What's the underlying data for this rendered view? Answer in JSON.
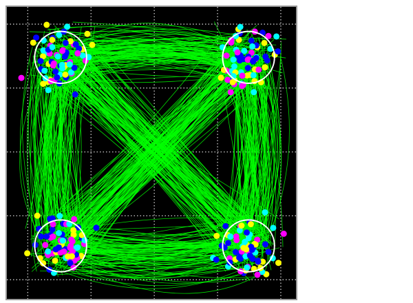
{
  "chart_data": {
    "type": "line",
    "title": "",
    "xlabel": "",
    "ylabel": "",
    "xlim": [
      -0.33,
      4.24
    ],
    "ylim": [
      -0.3,
      4.27
    ],
    "grid": true,
    "grid_ticks": [
      0,
      1,
      2,
      3,
      4
    ],
    "background": "#000000",
    "trajectory_color": "#00ff00",
    "target_ring_color": "#ffffff",
    "targets": [
      {
        "x": 0.52,
        "y": 3.48,
        "r": 0.41
      },
      {
        "x": 3.49,
        "y": 3.48,
        "r": 0.41
      },
      {
        "x": 0.52,
        "y": 0.53,
        "r": 0.41
      },
      {
        "x": 3.49,
        "y": 0.53,
        "r": 0.41
      }
    ],
    "endpoint_colors": [
      "#ff00ff",
      "#0000ff",
      "#ffff00",
      "#00ffff"
    ],
    "trajectory_count": 600
  }
}
